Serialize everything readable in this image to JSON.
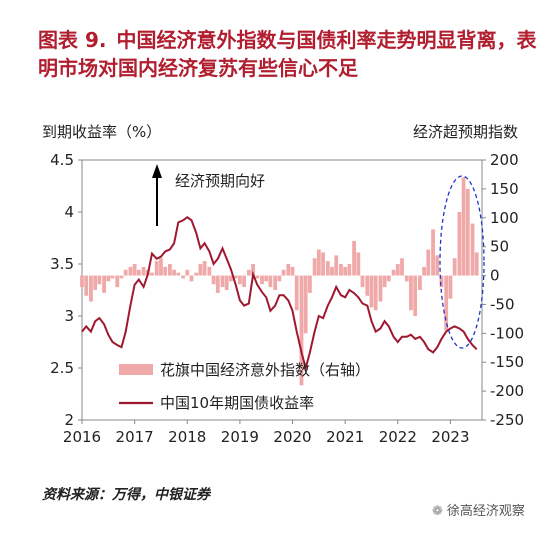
{
  "title_prefix": "图表 9.",
  "title": "中国经济意外指数与国债利率走势明显背离，表明市场对国内经济复苏有些信心不足",
  "source": "资料来源：万得，中银证券",
  "watermark": "徐高经济观察",
  "colors": {
    "title": "#b01e2f",
    "bar": "#f0a9a9",
    "line": "#a01830",
    "ellipse": "#2233cc"
  },
  "chart_data": {
    "type": "bar+line",
    "ylabel_left": "到期收益率（%）",
    "ylabel_right": "经济超预期指数",
    "annotation": "经济预期向好",
    "xlim": [
      2016.0,
      2023.6
    ],
    "ylim_left": [
      2,
      4.5
    ],
    "ylim_right": [
      -250,
      200
    ],
    "yticks_left": [
      "2",
      "2.5",
      "3",
      "3.5",
      "4",
      "4.5"
    ],
    "yticks_right": [
      "-250",
      "-200",
      "-150",
      "-100",
      "-50",
      "0",
      "50",
      "100",
      "150",
      "200"
    ],
    "xticks": [
      "2016",
      "2017",
      "2018",
      "2019",
      "2020",
      "2021",
      "2022",
      "2023"
    ],
    "legend": [
      "花旗中国经济意外指数（右轴）",
      "中国10年期国债收益率"
    ],
    "series": [
      {
        "name": "花旗中国经济意外指数（右轴）",
        "axis": "right",
        "type": "bar",
        "points": [
          [
            2016.0,
            -20
          ],
          [
            2016.08,
            -35
          ],
          [
            2016.17,
            -45
          ],
          [
            2016.25,
            -25
          ],
          [
            2016.33,
            -15
          ],
          [
            2016.42,
            -30
          ],
          [
            2016.5,
            -10
          ],
          [
            2016.58,
            -5
          ],
          [
            2016.67,
            -20
          ],
          [
            2016.75,
            -5
          ],
          [
            2016.83,
            10
          ],
          [
            2016.92,
            15
          ],
          [
            2017.0,
            20
          ],
          [
            2017.08,
            10
          ],
          [
            2017.17,
            15
          ],
          [
            2017.25,
            10
          ],
          [
            2017.33,
            5
          ],
          [
            2017.42,
            25
          ],
          [
            2017.5,
            30
          ],
          [
            2017.58,
            15
          ],
          [
            2017.67,
            20
          ],
          [
            2017.75,
            10
          ],
          [
            2017.83,
            5
          ],
          [
            2017.92,
            -5
          ],
          [
            2018.0,
            10
          ],
          [
            2018.08,
            -10
          ],
          [
            2018.17,
            5
          ],
          [
            2018.25,
            20
          ],
          [
            2018.33,
            25
          ],
          [
            2018.42,
            15
          ],
          [
            2018.5,
            -15
          ],
          [
            2018.58,
            -30
          ],
          [
            2018.67,
            -20
          ],
          [
            2018.75,
            -25
          ],
          [
            2018.83,
            -10
          ],
          [
            2018.92,
            -5
          ],
          [
            2019.0,
            -15
          ],
          [
            2019.08,
            -20
          ],
          [
            2019.17,
            10
          ],
          [
            2019.25,
            20
          ],
          [
            2019.33,
            -5
          ],
          [
            2019.42,
            -15
          ],
          [
            2019.5,
            -10
          ],
          [
            2019.58,
            -20
          ],
          [
            2019.67,
            -25
          ],
          [
            2019.75,
            -10
          ],
          [
            2019.83,
            10
          ],
          [
            2019.92,
            20
          ],
          [
            2020.0,
            15
          ],
          [
            2020.08,
            -60
          ],
          [
            2020.17,
            -190
          ],
          [
            2020.25,
            -100
          ],
          [
            2020.33,
            -30
          ],
          [
            2020.42,
            30
          ],
          [
            2020.5,
            45
          ],
          [
            2020.58,
            40
          ],
          [
            2020.67,
            25
          ],
          [
            2020.75,
            15
          ],
          [
            2020.83,
            35
          ],
          [
            2020.92,
            20
          ],
          [
            2021.0,
            15
          ],
          [
            2021.08,
            20
          ],
          [
            2021.17,
            60
          ],
          [
            2021.25,
            40
          ],
          [
            2021.33,
            -20
          ],
          [
            2021.42,
            -35
          ],
          [
            2021.5,
            -55
          ],
          [
            2021.58,
            -60
          ],
          [
            2021.67,
            -45
          ],
          [
            2021.75,
            -20
          ],
          [
            2021.83,
            -10
          ],
          [
            2021.92,
            10
          ],
          [
            2022.0,
            20
          ],
          [
            2022.08,
            30
          ],
          [
            2022.17,
            -10
          ],
          [
            2022.25,
            -60
          ],
          [
            2022.33,
            -70
          ],
          [
            2022.42,
            -25
          ],
          [
            2022.5,
            15
          ],
          [
            2022.58,
            45
          ],
          [
            2022.67,
            80
          ],
          [
            2022.75,
            35
          ],
          [
            2022.83,
            -20
          ],
          [
            2022.92,
            -95
          ],
          [
            2023.0,
            -40
          ],
          [
            2023.08,
            30
          ],
          [
            2023.17,
            110
          ],
          [
            2023.25,
            170
          ],
          [
            2023.33,
            150
          ],
          [
            2023.42,
            90
          ],
          [
            2023.5,
            40
          ]
        ]
      },
      {
        "name": "中国10年期国债收益率",
        "axis": "left",
        "type": "line",
        "points": [
          [
            2016.0,
            2.85
          ],
          [
            2016.08,
            2.9
          ],
          [
            2016.17,
            2.85
          ],
          [
            2016.25,
            2.95
          ],
          [
            2016.33,
            2.98
          ],
          [
            2016.42,
            2.92
          ],
          [
            2016.5,
            2.82
          ],
          [
            2016.58,
            2.75
          ],
          [
            2016.67,
            2.72
          ],
          [
            2016.75,
            2.7
          ],
          [
            2016.83,
            2.85
          ],
          [
            2016.92,
            3.1
          ],
          [
            2017.0,
            3.3
          ],
          [
            2017.08,
            3.35
          ],
          [
            2017.17,
            3.28
          ],
          [
            2017.25,
            3.4
          ],
          [
            2017.33,
            3.6
          ],
          [
            2017.42,
            3.55
          ],
          [
            2017.5,
            3.57
          ],
          [
            2017.58,
            3.62
          ],
          [
            2017.67,
            3.64
          ],
          [
            2017.75,
            3.7
          ],
          [
            2017.83,
            3.9
          ],
          [
            2017.92,
            3.92
          ],
          [
            2018.0,
            3.95
          ],
          [
            2018.08,
            3.92
          ],
          [
            2018.17,
            3.8
          ],
          [
            2018.25,
            3.65
          ],
          [
            2018.33,
            3.7
          ],
          [
            2018.42,
            3.62
          ],
          [
            2018.5,
            3.5
          ],
          [
            2018.58,
            3.55
          ],
          [
            2018.67,
            3.65
          ],
          [
            2018.75,
            3.55
          ],
          [
            2018.83,
            3.45
          ],
          [
            2018.92,
            3.3
          ],
          [
            2019.0,
            3.15
          ],
          [
            2019.08,
            3.1
          ],
          [
            2019.17,
            3.12
          ],
          [
            2019.25,
            3.4
          ],
          [
            2019.33,
            3.3
          ],
          [
            2019.42,
            3.23
          ],
          [
            2019.5,
            3.18
          ],
          [
            2019.58,
            3.05
          ],
          [
            2019.67,
            3.1
          ],
          [
            2019.75,
            3.2
          ],
          [
            2019.83,
            3.2
          ],
          [
            2019.92,
            3.15
          ],
          [
            2020.0,
            3.05
          ],
          [
            2020.08,
            2.85
          ],
          [
            2020.17,
            2.65
          ],
          [
            2020.25,
            2.5
          ],
          [
            2020.33,
            2.65
          ],
          [
            2020.42,
            2.85
          ],
          [
            2020.5,
            3.0
          ],
          [
            2020.58,
            2.98
          ],
          [
            2020.67,
            3.1
          ],
          [
            2020.75,
            3.18
          ],
          [
            2020.83,
            3.28
          ],
          [
            2020.92,
            3.2
          ],
          [
            2021.0,
            3.18
          ],
          [
            2021.08,
            3.25
          ],
          [
            2021.17,
            3.22
          ],
          [
            2021.25,
            3.18
          ],
          [
            2021.33,
            3.12
          ],
          [
            2021.42,
            3.1
          ],
          [
            2021.5,
            2.95
          ],
          [
            2021.58,
            2.85
          ],
          [
            2021.67,
            2.88
          ],
          [
            2021.75,
            2.95
          ],
          [
            2021.83,
            2.9
          ],
          [
            2021.92,
            2.8
          ],
          [
            2022.0,
            2.75
          ],
          [
            2022.08,
            2.8
          ],
          [
            2022.17,
            2.8
          ],
          [
            2022.25,
            2.82
          ],
          [
            2022.33,
            2.78
          ],
          [
            2022.42,
            2.8
          ],
          [
            2022.5,
            2.75
          ],
          [
            2022.58,
            2.68
          ],
          [
            2022.67,
            2.65
          ],
          [
            2022.75,
            2.7
          ],
          [
            2022.83,
            2.78
          ],
          [
            2022.92,
            2.85
          ],
          [
            2023.0,
            2.88
          ],
          [
            2023.08,
            2.9
          ],
          [
            2023.17,
            2.88
          ],
          [
            2023.25,
            2.85
          ],
          [
            2023.33,
            2.78
          ],
          [
            2023.42,
            2.72
          ],
          [
            2023.5,
            2.68
          ]
        ]
      }
    ]
  }
}
